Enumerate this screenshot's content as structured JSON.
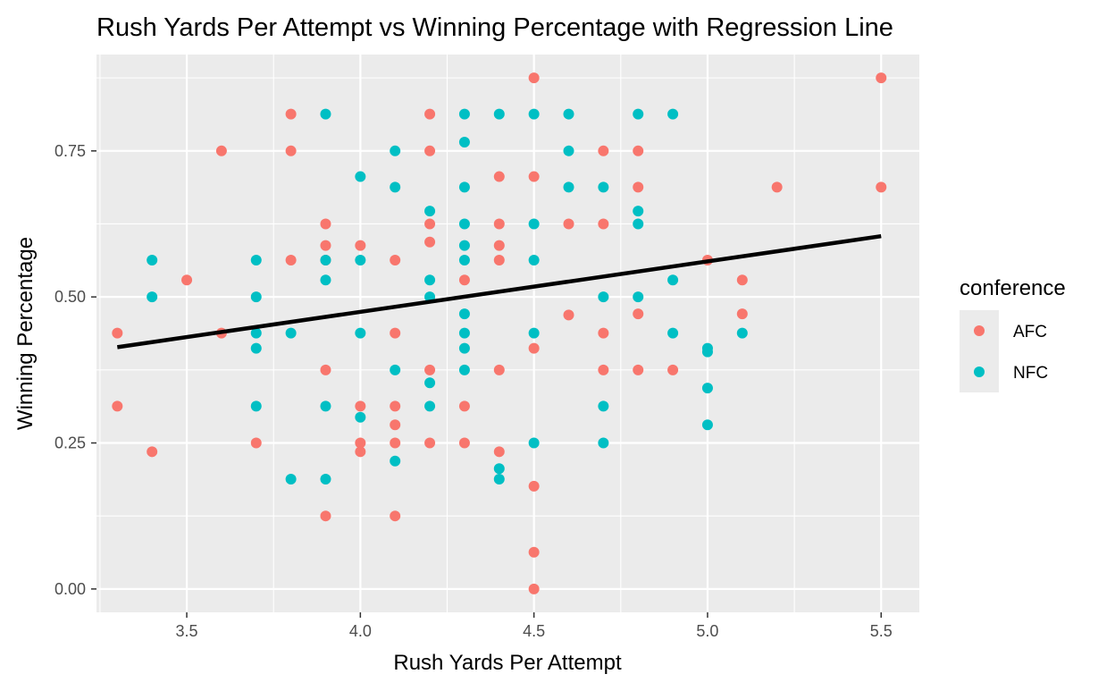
{
  "chart_data": {
    "type": "scatter",
    "title": "Rush Yards Per Attempt vs Winning Percentage with Regression Line",
    "xlabel": "Rush Yards Per Attempt",
    "ylabel": "Winning Percentage",
    "xlim": [
      3.24,
      5.61
    ],
    "ylim": [
      -0.04,
      0.915
    ],
    "x_ticks": [
      "3.5",
      "4.0",
      "4.5",
      "5.0",
      "5.5"
    ],
    "x_tick_values": [
      3.5,
      4.0,
      4.5,
      5.0,
      5.5
    ],
    "y_ticks": [
      "0.00",
      "0.25",
      "0.50",
      "0.75"
    ],
    "y_tick_values": [
      0.0,
      0.25,
      0.5,
      0.75
    ],
    "grid": true,
    "panel_background": "#ebebeb",
    "legend": {
      "title": "conference",
      "position": "right",
      "entries": [
        {
          "label": "AFC",
          "color": "#f8766d"
        },
        {
          "label": "NFC",
          "color": "#00bfc4"
        }
      ]
    },
    "regression_line": {
      "color": "#000000",
      "points": [
        [
          3.3,
          0.414
        ],
        [
          5.5,
          0.604
        ]
      ]
    },
    "series": [
      {
        "name": "AFC",
        "color": "#f8766d",
        "points": [
          [
            3.3,
            0.438
          ],
          [
            3.3,
            0.313
          ],
          [
            3.4,
            0.235
          ],
          [
            3.5,
            0.529
          ],
          [
            3.6,
            0.75
          ],
          [
            3.6,
            0.438
          ],
          [
            3.7,
            0.25
          ],
          [
            3.8,
            0.813
          ],
          [
            3.8,
            0.75
          ],
          [
            3.8,
            0.563
          ],
          [
            3.9,
            0.625
          ],
          [
            3.9,
            0.588
          ],
          [
            3.9,
            0.563
          ],
          [
            3.9,
            0.375
          ],
          [
            3.9,
            0.125
          ],
          [
            4.0,
            0.588
          ],
          [
            4.0,
            0.313
          ],
          [
            4.0,
            0.25
          ],
          [
            4.0,
            0.235
          ],
          [
            4.1,
            0.563
          ],
          [
            4.1,
            0.438
          ],
          [
            4.1,
            0.313
          ],
          [
            4.1,
            0.281
          ],
          [
            4.1,
            0.25
          ],
          [
            4.1,
            0.125
          ],
          [
            4.2,
            0.813
          ],
          [
            4.2,
            0.75
          ],
          [
            4.2,
            0.625
          ],
          [
            4.2,
            0.594
          ],
          [
            4.2,
            0.375
          ],
          [
            4.2,
            0.25
          ],
          [
            4.3,
            0.529
          ],
          [
            4.3,
            0.313
          ],
          [
            4.3,
            0.25
          ],
          [
            4.4,
            0.706
          ],
          [
            4.4,
            0.625
          ],
          [
            4.4,
            0.588
          ],
          [
            4.4,
            0.563
          ],
          [
            4.4,
            0.375
          ],
          [
            4.4,
            0.235
          ],
          [
            4.5,
            0.875
          ],
          [
            4.5,
            0.706
          ],
          [
            4.5,
            0.412
          ],
          [
            4.5,
            0.176
          ],
          [
            4.5,
            0.063
          ],
          [
            4.5,
            0.0
          ],
          [
            4.6,
            0.625
          ],
          [
            4.6,
            0.469
          ],
          [
            4.7,
            0.75
          ],
          [
            4.7,
            0.625
          ],
          [
            4.7,
            0.438
          ],
          [
            4.7,
            0.375
          ],
          [
            4.8,
            0.75
          ],
          [
            4.8,
            0.688
          ],
          [
            4.8,
            0.471
          ],
          [
            4.8,
            0.375
          ],
          [
            4.9,
            0.375
          ],
          [
            5.0,
            0.563
          ],
          [
            5.1,
            0.529
          ],
          [
            5.1,
            0.471
          ],
          [
            5.2,
            0.688
          ],
          [
            5.5,
            0.875
          ],
          [
            5.5,
            0.688
          ]
        ]
      },
      {
        "name": "NFC",
        "color": "#00bfc4",
        "points": [
          [
            3.4,
            0.563
          ],
          [
            3.4,
            0.5
          ],
          [
            3.7,
            0.563
          ],
          [
            3.7,
            0.5
          ],
          [
            3.7,
            0.438
          ],
          [
            3.7,
            0.412
          ],
          [
            3.7,
            0.313
          ],
          [
            3.8,
            0.438
          ],
          [
            3.8,
            0.188
          ],
          [
            3.9,
            0.813
          ],
          [
            3.9,
            0.563
          ],
          [
            3.9,
            0.529
          ],
          [
            3.9,
            0.313
          ],
          [
            3.9,
            0.188
          ],
          [
            4.0,
            0.706
          ],
          [
            4.0,
            0.563
          ],
          [
            4.0,
            0.438
          ],
          [
            4.0,
            0.294
          ],
          [
            4.1,
            0.75
          ],
          [
            4.1,
            0.688
          ],
          [
            4.1,
            0.375
          ],
          [
            4.1,
            0.219
          ],
          [
            4.2,
            0.647
          ],
          [
            4.2,
            0.529
          ],
          [
            4.2,
            0.5
          ],
          [
            4.2,
            0.353
          ],
          [
            4.2,
            0.313
          ],
          [
            4.3,
            0.813
          ],
          [
            4.3,
            0.765
          ],
          [
            4.3,
            0.688
          ],
          [
            4.3,
            0.625
          ],
          [
            4.3,
            0.588
          ],
          [
            4.3,
            0.563
          ],
          [
            4.3,
            0.471
          ],
          [
            4.3,
            0.438
          ],
          [
            4.3,
            0.412
          ],
          [
            4.3,
            0.375
          ],
          [
            4.4,
            0.813
          ],
          [
            4.4,
            0.206
          ],
          [
            4.4,
            0.188
          ],
          [
            4.5,
            0.813
          ],
          [
            4.5,
            0.625
          ],
          [
            4.5,
            0.563
          ],
          [
            4.5,
            0.438
          ],
          [
            4.5,
            0.25
          ],
          [
            4.6,
            0.813
          ],
          [
            4.6,
            0.75
          ],
          [
            4.6,
            0.688
          ],
          [
            4.7,
            0.688
          ],
          [
            4.7,
            0.5
          ],
          [
            4.7,
            0.313
          ],
          [
            4.7,
            0.25
          ],
          [
            4.8,
            0.813
          ],
          [
            4.8,
            0.647
          ],
          [
            4.8,
            0.625
          ],
          [
            4.8,
            0.5
          ],
          [
            4.9,
            0.813
          ],
          [
            4.9,
            0.529
          ],
          [
            4.9,
            0.438
          ],
          [
            5.0,
            0.412
          ],
          [
            5.0,
            0.406
          ],
          [
            5.0,
            0.344
          ],
          [
            5.0,
            0.281
          ],
          [
            5.1,
            0.438
          ]
        ]
      }
    ]
  }
}
